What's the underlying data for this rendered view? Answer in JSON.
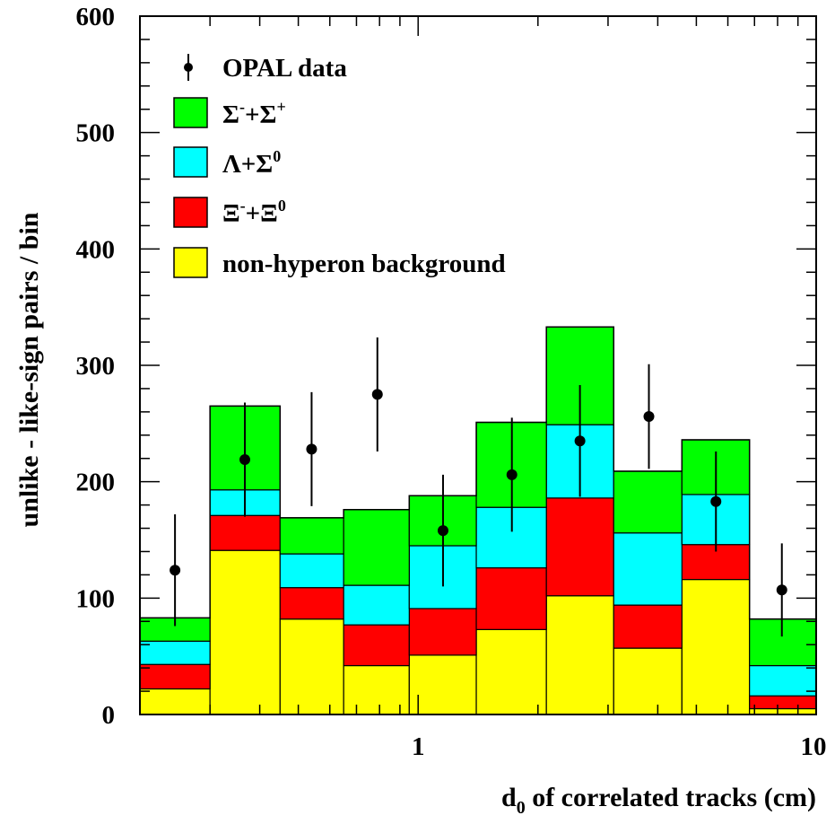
{
  "chart_data": {
    "type": "bar",
    "stacked": true,
    "title": "",
    "xlabel": {
      "main": "d",
      "sub": "0",
      "rest": " of correlated tracks (cm)"
    },
    "ylabel": "unlike - like-sign pairs / bin",
    "xscale": "log",
    "xlim": [
      0.2,
      10
    ],
    "ylim": [
      0,
      600
    ],
    "x_tick_labels": [
      "1",
      "10"
    ],
    "y_tick_labels": [
      "0",
      "100",
      "200",
      "300",
      "400",
      "500",
      "600"
    ],
    "legend_placement": "top-left",
    "bin_edges": [
      0.2,
      0.3,
      0.45,
      0.65,
      0.95,
      1.4,
      2.1,
      3.1,
      4.6,
      6.8,
      10
    ],
    "series": [
      {
        "name": "non-hyperon background",
        "color": "#ffff00",
        "values": [
          22,
          141,
          82,
          42,
          51,
          73,
          102,
          57,
          116,
          5
        ]
      },
      {
        "name": "Ξ⁻+Ξ⁰",
        "color": "#ff0000",
        "values": [
          21,
          30,
          27,
          35,
          40,
          53,
          84,
          37,
          30,
          11
        ]
      },
      {
        "name": "Λ+Σ⁰",
        "color": "#00ffff",
        "values": [
          20,
          22,
          29,
          34,
          54,
          52,
          63,
          62,
          43,
          26
        ]
      },
      {
        "name": "Σ⁻+Σ⁺",
        "color": "#00ff00",
        "values": [
          20,
          72,
          31,
          65,
          43,
          73,
          84,
          53,
          47,
          40
        ]
      }
    ],
    "data_points": {
      "name": "OPAL data",
      "x": [
        0.245,
        0.367,
        0.54,
        0.79,
        1.155,
        1.72,
        2.55,
        3.8,
        5.6,
        8.2
      ],
      "y": [
        124,
        219,
        228,
        275,
        158,
        206,
        235,
        256,
        183,
        107
      ],
      "err": [
        48,
        49,
        49,
        49,
        48,
        49,
        48,
        45,
        43,
        40
      ]
    },
    "legend": [
      {
        "label": "OPAL data",
        "marker": "point"
      },
      {
        "label_main": "Σ",
        "label_sup1": "-",
        "label_mid": "+Σ",
        "label_sup2": "+",
        "color": "#00ff00"
      },
      {
        "label_main": "Λ+Σ",
        "label_sup1": "0",
        "label_mid": "",
        "label_sup2": "",
        "color": "#00ffff"
      },
      {
        "label_main": "Ξ",
        "label_sup1": "-",
        "label_mid": "+Ξ",
        "label_sup2": "0",
        "color": "#ff0000"
      },
      {
        "label": "non-hyperon background",
        "color": "#ffff00"
      }
    ]
  }
}
